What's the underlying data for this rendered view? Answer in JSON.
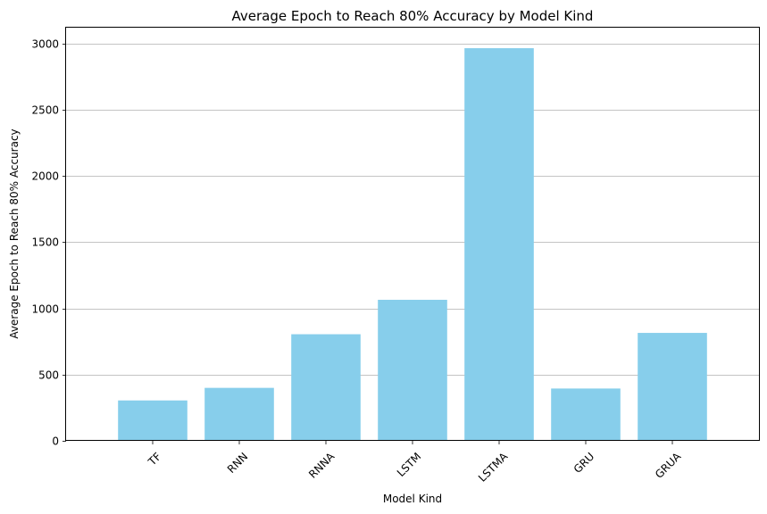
{
  "chart_data": {
    "type": "bar",
    "title": "Average Epoch to Reach 80% Accuracy by Model Kind",
    "xlabel": "Model Kind",
    "ylabel": "Average Epoch to Reach 80% Accuracy",
    "categories": [
      "TF",
      "RNN",
      "RNNA",
      "LSTM",
      "LSTMA",
      "GRU",
      "GRUA"
    ],
    "values": [
      305,
      400,
      805,
      1065,
      2965,
      395,
      815
    ],
    "ylim": [
      0,
      3120
    ],
    "yticks": [
      0,
      500,
      1000,
      1500,
      2000,
      2500,
      3000
    ],
    "bar_color": "#87CEEB",
    "grid": "y-axis only",
    "xtick_rotation": 45
  }
}
